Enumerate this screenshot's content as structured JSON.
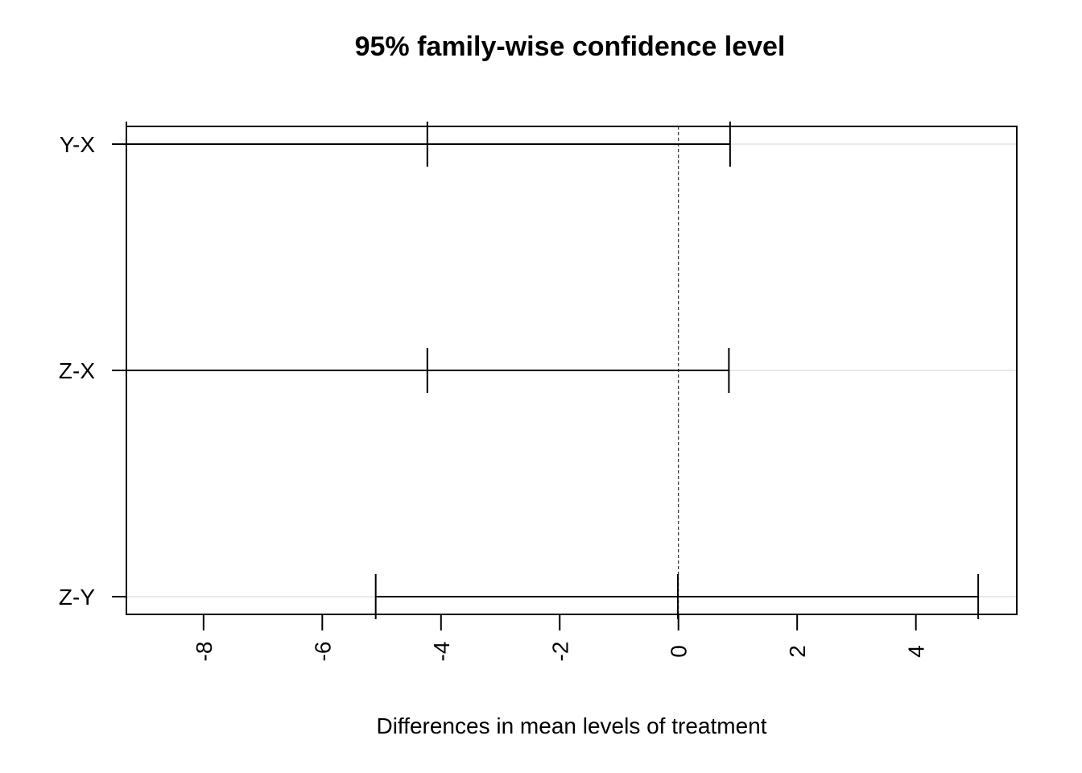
{
  "chart_data": {
    "type": "interval",
    "title": "95% family-wise confidence level",
    "xlabel": "Differences in mean levels of treatment",
    "ylabel": "",
    "xlim": [
      -9.3,
      5.7
    ],
    "x_ticks": [
      -8,
      -6,
      -4,
      -2,
      0,
      2,
      4
    ],
    "x_tick_labels": [
      "-8",
      "-6",
      "-4",
      "-2",
      "0",
      "2",
      "4"
    ],
    "reference_line": 0,
    "grid": "horizontal",
    "categories": [
      "Y-X",
      "Z-X",
      "Z-Y"
    ],
    "intervals": [
      {
        "label": "Y-X",
        "lwr": -9.3,
        "estimate": -4.23,
        "upr": 0.87
      },
      {
        "label": "Z-X",
        "lwr": -9.3,
        "estimate": -4.23,
        "upr": 0.85
      },
      {
        "label": "Z-Y",
        "lwr": -5.1,
        "estimate": -0.01,
        "upr": 5.05
      }
    ]
  }
}
